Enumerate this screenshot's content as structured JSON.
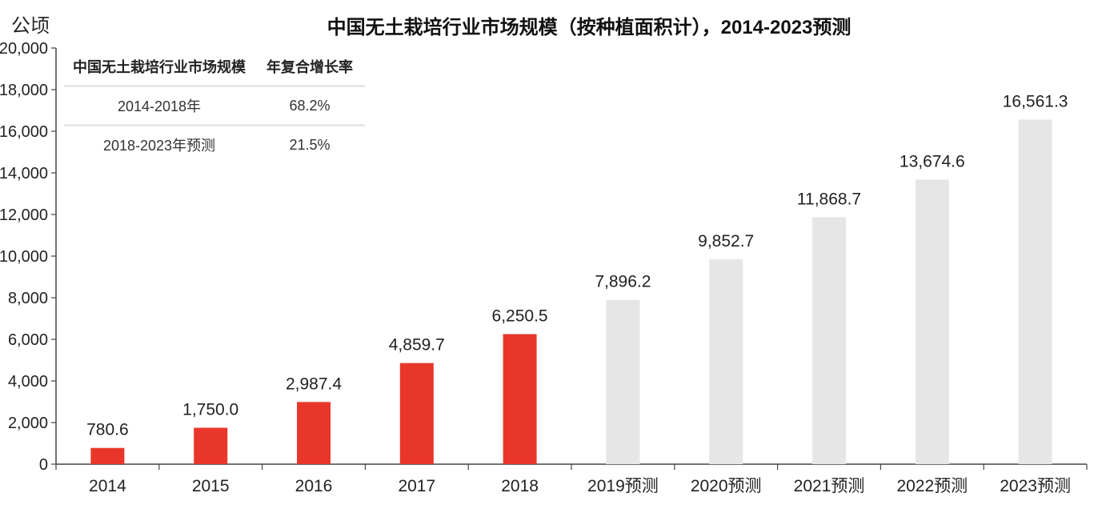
{
  "chart_data": {
    "type": "bar",
    "title": "中国无土栽培行业市场规模（按种植面积计），2014-2023预测",
    "ylabel": "公顷",
    "ylim": [
      0,
      20000
    ],
    "yticks": [
      "0",
      "2,000",
      "4,000",
      "6,000",
      "8,000",
      "10,000",
      "12,000",
      "14,000",
      "16,000",
      "18,000",
      "20,000"
    ],
    "categories": [
      "2014",
      "2015",
      "2016",
      "2017",
      "2018",
      "2019预测",
      "2020预测",
      "2021预测",
      "2022预测",
      "2023预测"
    ],
    "values": [
      780.6,
      1750.0,
      2987.4,
      4859.7,
      6250.5,
      7896.2,
      9852.7,
      11868.7,
      13674.6,
      16561.3
    ],
    "value_labels": [
      "780.6",
      "1,750.0",
      "2,987.4",
      "4,859.7",
      "6,250.5",
      "7,896.2",
      "9,852.7",
      "11,868.7",
      "13,674.6",
      "16,561.3"
    ],
    "bar_colors": [
      "#e8372a",
      "#e8372a",
      "#e8372a",
      "#e8372a",
      "#e8372a",
      "#e6e6e6",
      "#e6e6e6",
      "#e6e6e6",
      "#e6e6e6",
      "#e6e6e6"
    ],
    "grid": false,
    "table": {
      "headers": [
        "中国无土栽培行业市场规模",
        "年复合增长率"
      ],
      "rows": [
        [
          "2014-2018年",
          "68.2%"
        ],
        [
          "2018-2023年预测",
          "21.5%"
        ]
      ]
    }
  }
}
